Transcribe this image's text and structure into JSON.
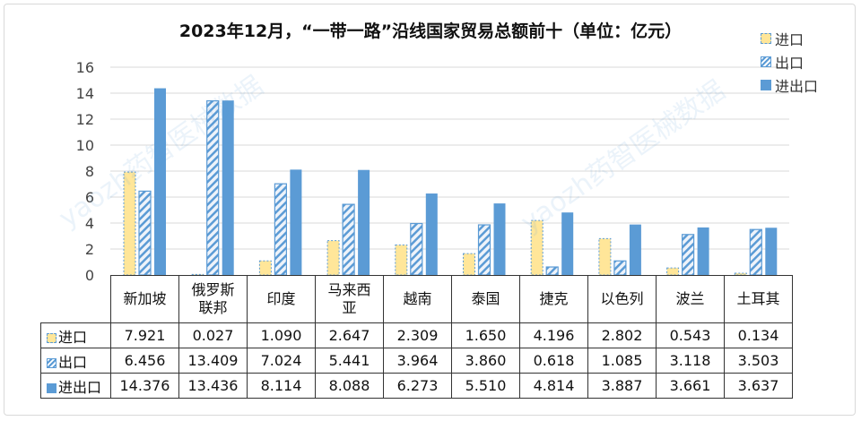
{
  "chart_data": {
    "type": "bar",
    "title": "2023年12月，“一带一路”沿线国家贸易总额前十（单位：亿元）",
    "categories": [
      "新加坡",
      "俄罗斯\n联邦",
      "印度",
      "马来西\n亚",
      "越南",
      "泰国",
      "捷克",
      "以色列",
      "波兰",
      "土耳其"
    ],
    "series": [
      {
        "name": "进口",
        "values": [
          7.921,
          0.027,
          1.09,
          2.647,
          2.309,
          1.65,
          4.196,
          2.802,
          0.543,
          0.134
        ],
        "labels": [
          "7.921",
          "0.027",
          "1.090",
          "2.647",
          "2.309",
          "1.650",
          "4.196",
          "2.802",
          "0.543",
          "0.134"
        ],
        "color": "#ffe699"
      },
      {
        "name": "出口",
        "values": [
          6.456,
          13.409,
          7.024,
          5.441,
          3.964,
          3.86,
          0.618,
          1.085,
          3.118,
          3.503
        ],
        "labels": [
          "6.456",
          "13.409",
          "7.024",
          "5.441",
          "3.964",
          "3.860",
          "0.618",
          "1.085",
          "3.118",
          "3.503"
        ],
        "color": "#5b9bd5"
      },
      {
        "name": "进出口",
        "values": [
          14.376,
          13.436,
          8.114,
          8.088,
          6.273,
          5.51,
          4.814,
          3.887,
          3.661,
          3.637
        ],
        "labels": [
          "14.376",
          "13.436",
          "8.114",
          "8.088",
          "6.273",
          "5.510",
          "4.814",
          "3.887",
          "3.661",
          "3.637"
        ],
        "color": "#5b9bd5"
      }
    ],
    "ylim": [
      0,
      16
    ],
    "yticks": [
      "0",
      "2",
      "4",
      "6",
      "8",
      "10",
      "12",
      "14",
      "16"
    ],
    "grid": true,
    "legend": "top-right",
    "data_table": true
  },
  "watermark": "yaozh药智医械数据"
}
